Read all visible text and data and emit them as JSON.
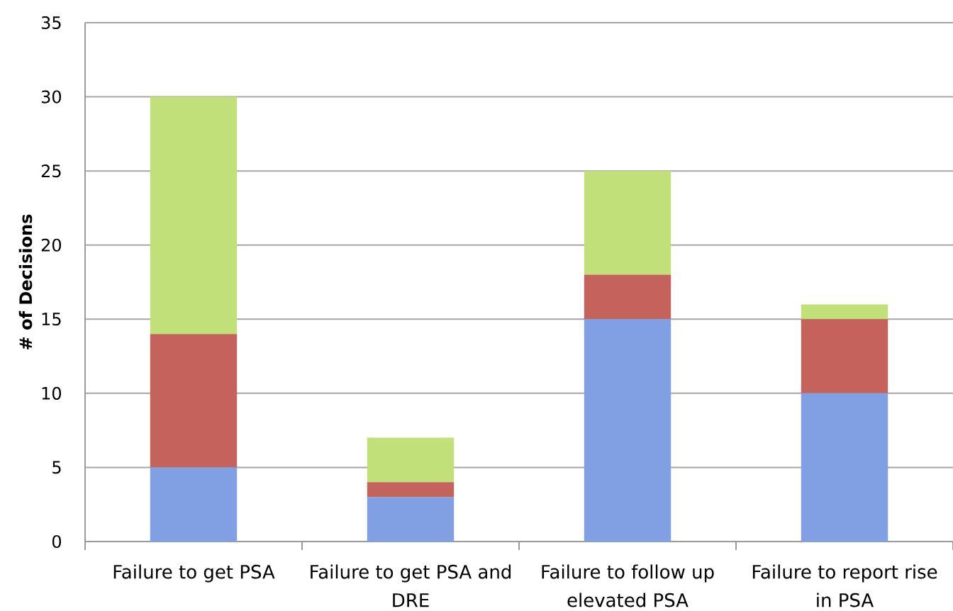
{
  "chart_data": {
    "type": "bar",
    "stacked": true,
    "ylabel": "# of Decisions",
    "categories": [
      "Failure to get PSA",
      "Failure to get PSA and DRE",
      "Failure to follow up elevated PSA",
      "Failure to report rise in PSA"
    ],
    "series": [
      {
        "color": "#819fe3",
        "values": [
          5,
          3,
          15,
          10
        ]
      },
      {
        "color": "#c4625c",
        "values": [
          9,
          1,
          3,
          5
        ]
      },
      {
        "color": "#c1e07a",
        "values": [
          16,
          3,
          7,
          1
        ]
      }
    ],
    "ylim": [
      0,
      35
    ],
    "yticks": [
      0,
      5,
      10,
      15,
      20,
      25,
      30,
      35
    ],
    "grid": "y"
  }
}
